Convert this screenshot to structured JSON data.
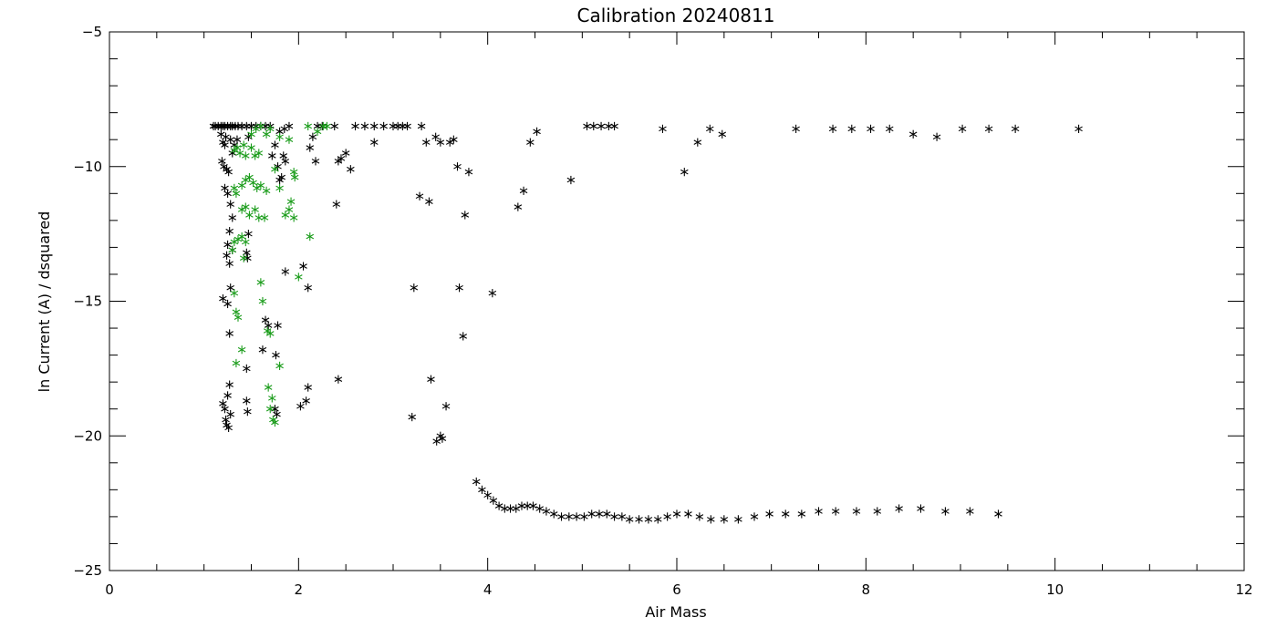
{
  "chart_data": {
    "type": "scatter",
    "title": "Calibration 20240811",
    "xlabel": "Air Mass",
    "ylabel": "ln Current (A) / dsquared",
    "xlim": [
      0,
      12
    ],
    "ylim": [
      -25,
      -5
    ],
    "xticks": [
      0,
      2,
      4,
      6,
      8,
      10,
      12
    ],
    "yticks": [
      -25,
      -20,
      -15,
      -10,
      -5
    ],
    "x_minor_step": 0.5,
    "y_minor_step": 1,
    "marker": "asterisk",
    "grid": false,
    "legend": "none",
    "series": [
      {
        "color": "#000000",
        "points": [
          [
            1.1,
            -8.5
          ],
          [
            1.12,
            -8.5
          ],
          [
            1.15,
            -8.5
          ],
          [
            1.18,
            -8.5
          ],
          [
            1.2,
            -8.5
          ],
          [
            1.22,
            -8.5
          ],
          [
            1.25,
            -8.5
          ],
          [
            1.28,
            -8.5
          ],
          [
            1.3,
            -8.5
          ],
          [
            1.33,
            -8.5
          ],
          [
            1.36,
            -8.5
          ],
          [
            1.4,
            -8.5
          ],
          [
            1.45,
            -8.5
          ],
          [
            1.5,
            -8.5
          ],
          [
            1.55,
            -8.5
          ],
          [
            1.6,
            -8.5
          ],
          [
            1.65,
            -8.5
          ],
          [
            1.7,
            -8.5
          ],
          [
            1.18,
            -8.8
          ],
          [
            1.2,
            -9.1
          ],
          [
            1.22,
            -9.2
          ],
          [
            1.19,
            -9.8
          ],
          [
            1.21,
            -10.0
          ],
          [
            1.24,
            -10.1
          ],
          [
            1.26,
            -10.2
          ],
          [
            1.3,
            -9.5
          ],
          [
            1.32,
            -9.2
          ],
          [
            1.35,
            -9.0
          ],
          [
            1.23,
            -8.9
          ],
          [
            1.28,
            -9.0
          ],
          [
            1.22,
            -10.8
          ],
          [
            1.25,
            -11.0
          ],
          [
            1.28,
            -11.4
          ],
          [
            1.3,
            -11.9
          ],
          [
            1.27,
            -12.4
          ],
          [
            1.25,
            -12.9
          ],
          [
            1.24,
            -13.3
          ],
          [
            1.27,
            -13.6
          ],
          [
            1.3,
            -13.1
          ],
          [
            1.45,
            -13.2
          ],
          [
            1.47,
            -12.5
          ],
          [
            1.46,
            -13.4
          ],
          [
            1.2,
            -14.9
          ],
          [
            1.25,
            -15.1
          ],
          [
            1.28,
            -14.5
          ],
          [
            1.27,
            -16.2
          ],
          [
            1.45,
            -17.5
          ],
          [
            1.47,
            -8.9
          ],
          [
            1.2,
            -18.8
          ],
          [
            1.22,
            -19.0
          ],
          [
            1.25,
            -18.5
          ],
          [
            1.24,
            -19.6
          ],
          [
            1.26,
            -19.7
          ],
          [
            1.28,
            -19.2
          ],
          [
            1.27,
            -18.1
          ],
          [
            1.23,
            -19.4
          ],
          [
            1.45,
            -18.7
          ],
          [
            1.46,
            -19.1
          ],
          [
            1.62,
            -16.8
          ],
          [
            1.65,
            -15.7
          ],
          [
            1.68,
            -15.9
          ],
          [
            1.72,
            -9.6
          ],
          [
            1.75,
            -9.2
          ],
          [
            1.78,
            -10.0
          ],
          [
            1.8,
            -10.5
          ],
          [
            1.82,
            -10.4
          ],
          [
            1.84,
            -9.6
          ],
          [
            1.86,
            -9.8
          ],
          [
            1.78,
            -15.9
          ],
          [
            1.76,
            -17.0
          ],
          [
            1.75,
            -19.0
          ],
          [
            1.77,
            -19.2
          ],
          [
            1.8,
            -8.7
          ],
          [
            1.85,
            -8.6
          ],
          [
            1.9,
            -8.5
          ],
          [
            1.86,
            -13.9
          ],
          [
            2.02,
            -18.9
          ],
          [
            2.08,
            -18.7
          ],
          [
            2.1,
            -18.2
          ],
          [
            2.05,
            -13.7
          ],
          [
            2.1,
            -14.5
          ],
          [
            2.12,
            -9.3
          ],
          [
            2.15,
            -8.9
          ],
          [
            2.18,
            -9.8
          ],
          [
            2.2,
            -8.5
          ],
          [
            2.25,
            -8.5
          ],
          [
            2.38,
            -8.5
          ],
          [
            2.4,
            -11.4
          ],
          [
            2.42,
            -9.8
          ],
          [
            2.45,
            -9.7
          ],
          [
            2.5,
            -9.5
          ],
          [
            2.55,
            -10.1
          ],
          [
            2.42,
            -17.9
          ],
          [
            2.6,
            -8.5
          ],
          [
            2.7,
            -8.5
          ],
          [
            2.8,
            -8.5
          ],
          [
            2.8,
            -9.1
          ],
          [
            2.9,
            -8.5
          ],
          [
            3.0,
            -8.5
          ],
          [
            3.05,
            -8.5
          ],
          [
            3.1,
            -8.5
          ],
          [
            3.15,
            -8.5
          ],
          [
            3.3,
            -8.5
          ],
          [
            3.28,
            -11.1
          ],
          [
            3.38,
            -11.3
          ],
          [
            3.35,
            -9.1
          ],
          [
            3.45,
            -8.9
          ],
          [
            3.5,
            -9.1
          ],
          [
            3.6,
            -9.1
          ],
          [
            3.64,
            -9.0
          ],
          [
            3.68,
            -10.0
          ],
          [
            3.8,
            -10.2
          ],
          [
            3.76,
            -11.8
          ],
          [
            3.7,
            -14.5
          ],
          [
            3.74,
            -16.3
          ],
          [
            3.22,
            -14.5
          ],
          [
            3.2,
            -19.3
          ],
          [
            3.4,
            -17.9
          ],
          [
            3.46,
            -20.2
          ],
          [
            3.5,
            -20.0
          ],
          [
            3.52,
            -20.1
          ],
          [
            3.56,
            -18.9
          ],
          [
            4.05,
            -14.7
          ],
          [
            4.32,
            -11.5
          ],
          [
            4.38,
            -10.9
          ],
          [
            4.45,
            -9.1
          ],
          [
            4.52,
            -8.7
          ],
          [
            4.88,
            -10.5
          ],
          [
            5.05,
            -8.5
          ],
          [
            5.12,
            -8.5
          ],
          [
            5.2,
            -8.5
          ],
          [
            5.28,
            -8.5
          ],
          [
            5.34,
            -8.5
          ],
          [
            5.85,
            -8.6
          ],
          [
            6.08,
            -10.2
          ],
          [
            6.22,
            -9.1
          ],
          [
            6.35,
            -8.6
          ],
          [
            6.48,
            -8.8
          ],
          [
            7.26,
            -8.6
          ],
          [
            7.65,
            -8.6
          ],
          [
            7.85,
            -8.6
          ],
          [
            8.05,
            -8.6
          ],
          [
            8.25,
            -8.6
          ],
          [
            8.5,
            -8.8
          ],
          [
            8.75,
            -8.9
          ],
          [
            9.02,
            -8.6
          ],
          [
            9.3,
            -8.6
          ],
          [
            9.58,
            -8.6
          ],
          [
            10.25,
            -8.6
          ],
          [
            3.88,
            -21.7
          ],
          [
            3.94,
            -22.0
          ],
          [
            4.0,
            -22.2
          ],
          [
            4.06,
            -22.4
          ],
          [
            4.12,
            -22.6
          ],
          [
            4.18,
            -22.7
          ],
          [
            4.24,
            -22.7
          ],
          [
            4.3,
            -22.7
          ],
          [
            4.36,
            -22.6
          ],
          [
            4.42,
            -22.6
          ],
          [
            4.48,
            -22.6
          ],
          [
            4.55,
            -22.7
          ],
          [
            4.62,
            -22.8
          ],
          [
            4.7,
            -22.9
          ],
          [
            4.78,
            -23.0
          ],
          [
            4.86,
            -23.0
          ],
          [
            4.94,
            -23.0
          ],
          [
            5.02,
            -23.0
          ],
          [
            5.1,
            -22.9
          ],
          [
            5.18,
            -22.9
          ],
          [
            5.26,
            -22.9
          ],
          [
            5.34,
            -23.0
          ],
          [
            5.42,
            -23.0
          ],
          [
            5.5,
            -23.1
          ],
          [
            5.6,
            -23.1
          ],
          [
            5.7,
            -23.1
          ],
          [
            5.8,
            -23.1
          ],
          [
            5.9,
            -23.0
          ],
          [
            6.0,
            -22.9
          ],
          [
            6.12,
            -22.9
          ],
          [
            6.24,
            -23.0
          ],
          [
            6.36,
            -23.1
          ],
          [
            6.5,
            -23.1
          ],
          [
            6.65,
            -23.1
          ],
          [
            6.82,
            -23.0
          ],
          [
            6.98,
            -22.9
          ],
          [
            7.15,
            -22.9
          ],
          [
            7.32,
            -22.9
          ],
          [
            7.5,
            -22.8
          ],
          [
            7.68,
            -22.8
          ],
          [
            7.9,
            -22.8
          ],
          [
            8.12,
            -22.8
          ],
          [
            8.35,
            -22.7
          ],
          [
            8.58,
            -22.7
          ],
          [
            8.84,
            -22.8
          ],
          [
            9.1,
            -22.8
          ],
          [
            9.4,
            -22.9
          ]
        ]
      },
      {
        "color": "#1a9c1a",
        "points": [
          [
            1.32,
            -9.4
          ],
          [
            1.35,
            -9.3
          ],
          [
            1.38,
            -9.5
          ],
          [
            1.42,
            -9.2
          ],
          [
            1.44,
            -9.6
          ],
          [
            1.5,
            -9.3
          ],
          [
            1.54,
            -9.6
          ],
          [
            1.58,
            -9.5
          ],
          [
            1.32,
            -10.8
          ],
          [
            1.34,
            -11.0
          ],
          [
            1.4,
            -10.7
          ],
          [
            1.44,
            -10.5
          ],
          [
            1.48,
            -10.4
          ],
          [
            1.52,
            -10.6
          ],
          [
            1.56,
            -10.8
          ],
          [
            1.6,
            -10.7
          ],
          [
            1.4,
            -11.6
          ],
          [
            1.44,
            -11.5
          ],
          [
            1.48,
            -11.8
          ],
          [
            1.54,
            -11.6
          ],
          [
            1.58,
            -11.9
          ],
          [
            1.64,
            -11.9
          ],
          [
            1.66,
            -10.9
          ],
          [
            1.32,
            -12.8
          ],
          [
            1.36,
            -12.7
          ],
          [
            1.4,
            -12.6
          ],
          [
            1.44,
            -12.8
          ],
          [
            1.42,
            -13.4
          ],
          [
            1.3,
            -13.1
          ],
          [
            1.32,
            -14.7
          ],
          [
            1.34,
            -15.4
          ],
          [
            1.36,
            -15.6
          ],
          [
            1.6,
            -14.3
          ],
          [
            1.62,
            -15.0
          ],
          [
            1.67,
            -16.1
          ],
          [
            1.7,
            -16.2
          ],
          [
            1.34,
            -17.3
          ],
          [
            1.4,
            -16.8
          ],
          [
            1.68,
            -18.2
          ],
          [
            1.72,
            -18.6
          ],
          [
            1.7,
            -19.0
          ],
          [
            1.73,
            -19.4
          ],
          [
            1.75,
            -19.5
          ],
          [
            1.8,
            -17.4
          ],
          [
            1.75,
            -10.1
          ],
          [
            1.8,
            -10.8
          ],
          [
            1.86,
            -11.8
          ],
          [
            1.9,
            -11.6
          ],
          [
            1.92,
            -11.3
          ],
          [
            1.95,
            -11.9
          ],
          [
            2.0,
            -14.1
          ],
          [
            2.12,
            -12.6
          ],
          [
            1.95,
            -10.2
          ],
          [
            1.96,
            -10.4
          ],
          [
            1.8,
            -8.9
          ],
          [
            1.9,
            -9.0
          ],
          [
            2.1,
            -8.5
          ],
          [
            2.2,
            -8.7
          ],
          [
            2.26,
            -8.5
          ],
          [
            2.3,
            -8.5
          ],
          [
            1.5,
            -8.8
          ],
          [
            1.55,
            -8.6
          ],
          [
            1.6,
            -8.5
          ],
          [
            1.66,
            -8.8
          ],
          [
            1.7,
            -8.6
          ]
        ]
      }
    ]
  }
}
